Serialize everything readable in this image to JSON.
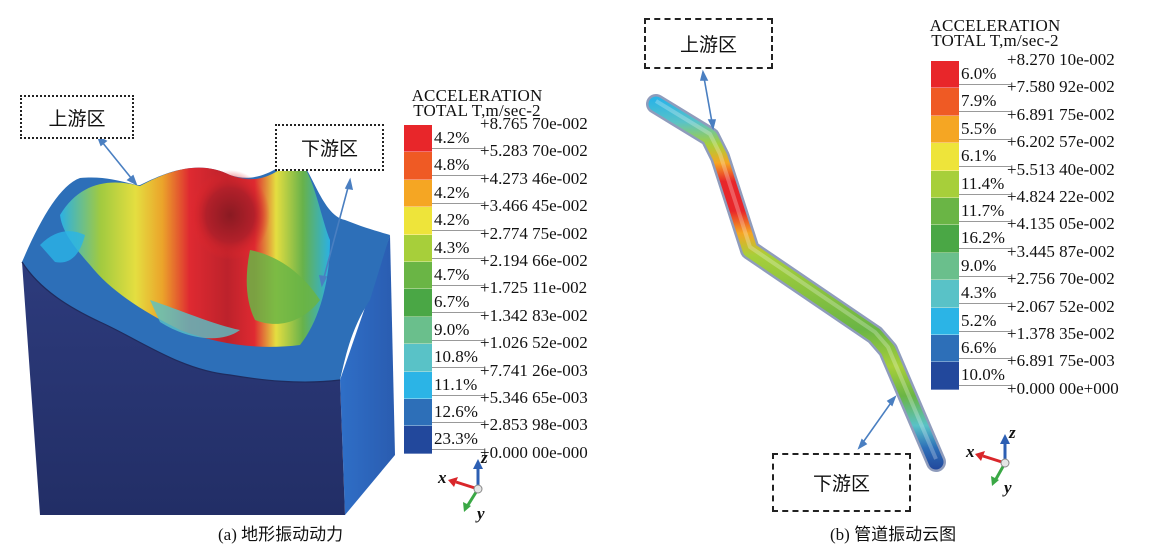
{
  "panel_a": {
    "caption": "(a) 地形振动动力",
    "upstream_label": "上游区",
    "downstream_label": "下游区",
    "legend": {
      "title_line1": "ACCELERATION",
      "title_line2": "TOTAL T,m/sec-2",
      "entries": [
        {
          "pct": "4.2%",
          "value": "+8.765 70e-002",
          "color": "#e8262a"
        },
        {
          "pct": "4.8%",
          "value": "+5.283 70e-002",
          "color": "#ef5a24"
        },
        {
          "pct": "4.2%",
          "value": "+4.273 46e-002",
          "color": "#f5a623"
        },
        {
          "pct": "4.2%",
          "value": "+3.466 45e-002",
          "color": "#eee43a"
        },
        {
          "pct": "4.3%",
          "value": "+2.774 75e-002",
          "color": "#a7cf3a"
        },
        {
          "pct": "4.7%",
          "value": "+2.194 66e-002",
          "color": "#6ab545"
        },
        {
          "pct": "6.7%",
          "value": "+1.725 11e-002",
          "color": "#4aa745"
        },
        {
          "pct": "9.0%",
          "value": "+1.342 83e-002",
          "color": "#6abf8c"
        },
        {
          "pct": "10.8%",
          "value": "+1.026 52e-002",
          "color": "#59c2c7"
        },
        {
          "pct": "11.1%",
          "value": "+7.741 26e-003",
          "color": "#2bb4e6"
        },
        {
          "pct": "12.6%",
          "value": "+5.346 65e-003",
          "color": "#2d6fb8"
        },
        {
          "pct": "23.3%",
          "value": "+2.853 98e-003",
          "color": "#22489c"
        }
      ],
      "last_value": "+0.000 00e-000"
    },
    "axes": {
      "x": "x",
      "y": "y",
      "z": "z"
    }
  },
  "panel_b": {
    "caption": "(b) 管道振动云图",
    "upstream_label": "上游区",
    "downstream_label": "下游区",
    "legend": {
      "title_line1": "ACCELERATION",
      "title_line2": "TOTAL T,m/sec-2",
      "entries": [
        {
          "pct": "6.0%",
          "value": "+8.270 10e-002",
          "color": "#e8262a"
        },
        {
          "pct": "7.9%",
          "value": "+7.580 92e-002",
          "color": "#ef5a24"
        },
        {
          "pct": "5.5%",
          "value": "+6.891 75e-002",
          "color": "#f5a623"
        },
        {
          "pct": "6.1%",
          "value": "+6.202 57e-002",
          "color": "#eee43a"
        },
        {
          "pct": "11.4%",
          "value": "+5.513 40e-002",
          "color": "#a7cf3a"
        },
        {
          "pct": "11.7%",
          "value": "+4.824 22e-002",
          "color": "#6ab545"
        },
        {
          "pct": "16.2%",
          "value": "+4.135 05e-002",
          "color": "#4aa745"
        },
        {
          "pct": "9.0%",
          "value": "+3.445 87e-002",
          "color": "#6abf8c"
        },
        {
          "pct": "4.3%",
          "value": "+2.756 70e-002",
          "color": "#59c2c7"
        },
        {
          "pct": "5.2%",
          "value": "+2.067 52e-002",
          "color": "#2bb4e6"
        },
        {
          "pct": "6.6%",
          "value": "+1.378 35e-002",
          "color": "#2d6fb8"
        },
        {
          "pct": "10.0%",
          "value": "+6.891 75e-003",
          "color": "#22489c"
        }
      ],
      "last_value": "+0.000 00e+000"
    },
    "axes": {
      "x": "x",
      "y": "y",
      "z": "z"
    }
  },
  "colors": {
    "arrow": "#4a7fc1",
    "terrain_base": "#2b3a7a"
  }
}
